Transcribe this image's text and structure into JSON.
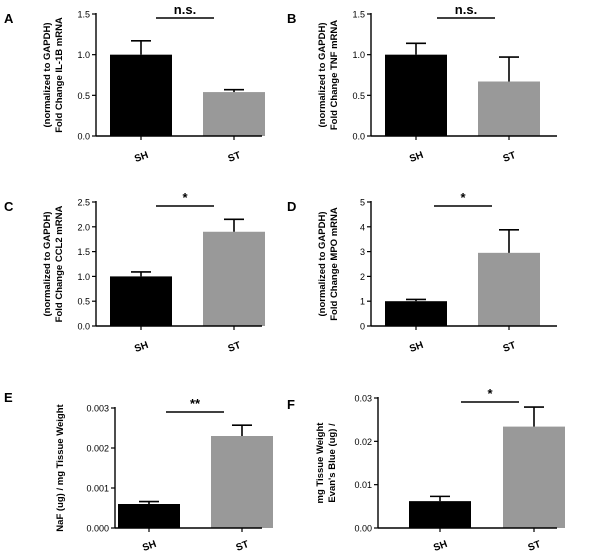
{
  "colors": {
    "SH": "#000000",
    "ST": "#999999",
    "axis": "#000000"
  },
  "chart_data": [
    {
      "panel": "A",
      "type": "bar",
      "ylabel": [
        "Fold Change IL-1B mRNA",
        "(normalized to GAPDH)"
      ],
      "categories": [
        "SH",
        "ST"
      ],
      "values": [
        1.0,
        0.54
      ],
      "errors": [
        0.17,
        0.03
      ],
      "ylim": [
        0,
        1.5
      ],
      "yticks": [
        "0.0",
        "0.5",
        "1.0",
        "1.5"
      ],
      "ytick_values": [
        0,
        0.5,
        1.0,
        1.5
      ],
      "significance": "n.s."
    },
    {
      "panel": "B",
      "type": "bar",
      "ylabel": [
        "Fold Change TNF mRNA",
        "(normalized to GAPDH)"
      ],
      "categories": [
        "SH",
        "ST"
      ],
      "values": [
        1.0,
        0.67
      ],
      "errors": [
        0.14,
        0.3
      ],
      "ylim": [
        0,
        1.5
      ],
      "yticks": [
        "0.0",
        "0.5",
        "1.0",
        "1.5"
      ],
      "ytick_values": [
        0,
        0.5,
        1.0,
        1.5
      ],
      "significance": "n.s."
    },
    {
      "panel": "C",
      "type": "bar",
      "ylabel": [
        "Fold Change CCL2 mRNA",
        "(normalized to GAPDH)"
      ],
      "categories": [
        "SH",
        "ST"
      ],
      "values": [
        1.0,
        1.9
      ],
      "errors": [
        0.09,
        0.25
      ],
      "ylim": [
        0,
        2.5
      ],
      "yticks": [
        "0.0",
        "0.5",
        "1.0",
        "1.5",
        "2.0",
        "2.5"
      ],
      "ytick_values": [
        0,
        0.5,
        1.0,
        1.5,
        2.0,
        2.5
      ],
      "significance": "*"
    },
    {
      "panel": "D",
      "type": "bar",
      "ylabel": [
        "Fold Change MPO mRNA",
        "(normalized to GAPDH)"
      ],
      "categories": [
        "SH",
        "ST"
      ],
      "values": [
        1.0,
        2.95
      ],
      "errors": [
        0.07,
        0.93
      ],
      "ylim": [
        0,
        5
      ],
      "yticks": [
        "0",
        "1",
        "2",
        "3",
        "4",
        "5"
      ],
      "ytick_values": [
        0,
        1,
        2,
        3,
        4,
        5
      ],
      "significance": "*"
    },
    {
      "panel": "E",
      "type": "bar",
      "ylabel": [
        "NaF (ug) / mg Tissue Weight"
      ],
      "categories": [
        "SH",
        "ST"
      ],
      "values": [
        0.0006,
        0.0023
      ],
      "errors": [
        6e-05,
        0.00027
      ],
      "ylim": [
        0,
        0.003
      ],
      "yticks": [
        "0.000",
        "0.001",
        "0.002",
        "0.003"
      ],
      "ytick_values": [
        0,
        0.001,
        0.002,
        0.003
      ],
      "significance": "**"
    },
    {
      "panel": "F",
      "type": "bar",
      "ylabel": [
        "Evan's Blue (ug) /",
        "mg Tissue Weight"
      ],
      "categories": [
        "SH",
        "ST"
      ],
      "values": [
        0.0062,
        0.0234
      ],
      "errors": [
        0.0011,
        0.0045
      ],
      "ylim": [
        0,
        0.03
      ],
      "yticks": [
        "0.00",
        "0.01",
        "0.02",
        "0.03"
      ],
      "ytick_values": [
        0,
        0.01,
        0.02,
        0.03
      ],
      "significance": "*"
    }
  ]
}
